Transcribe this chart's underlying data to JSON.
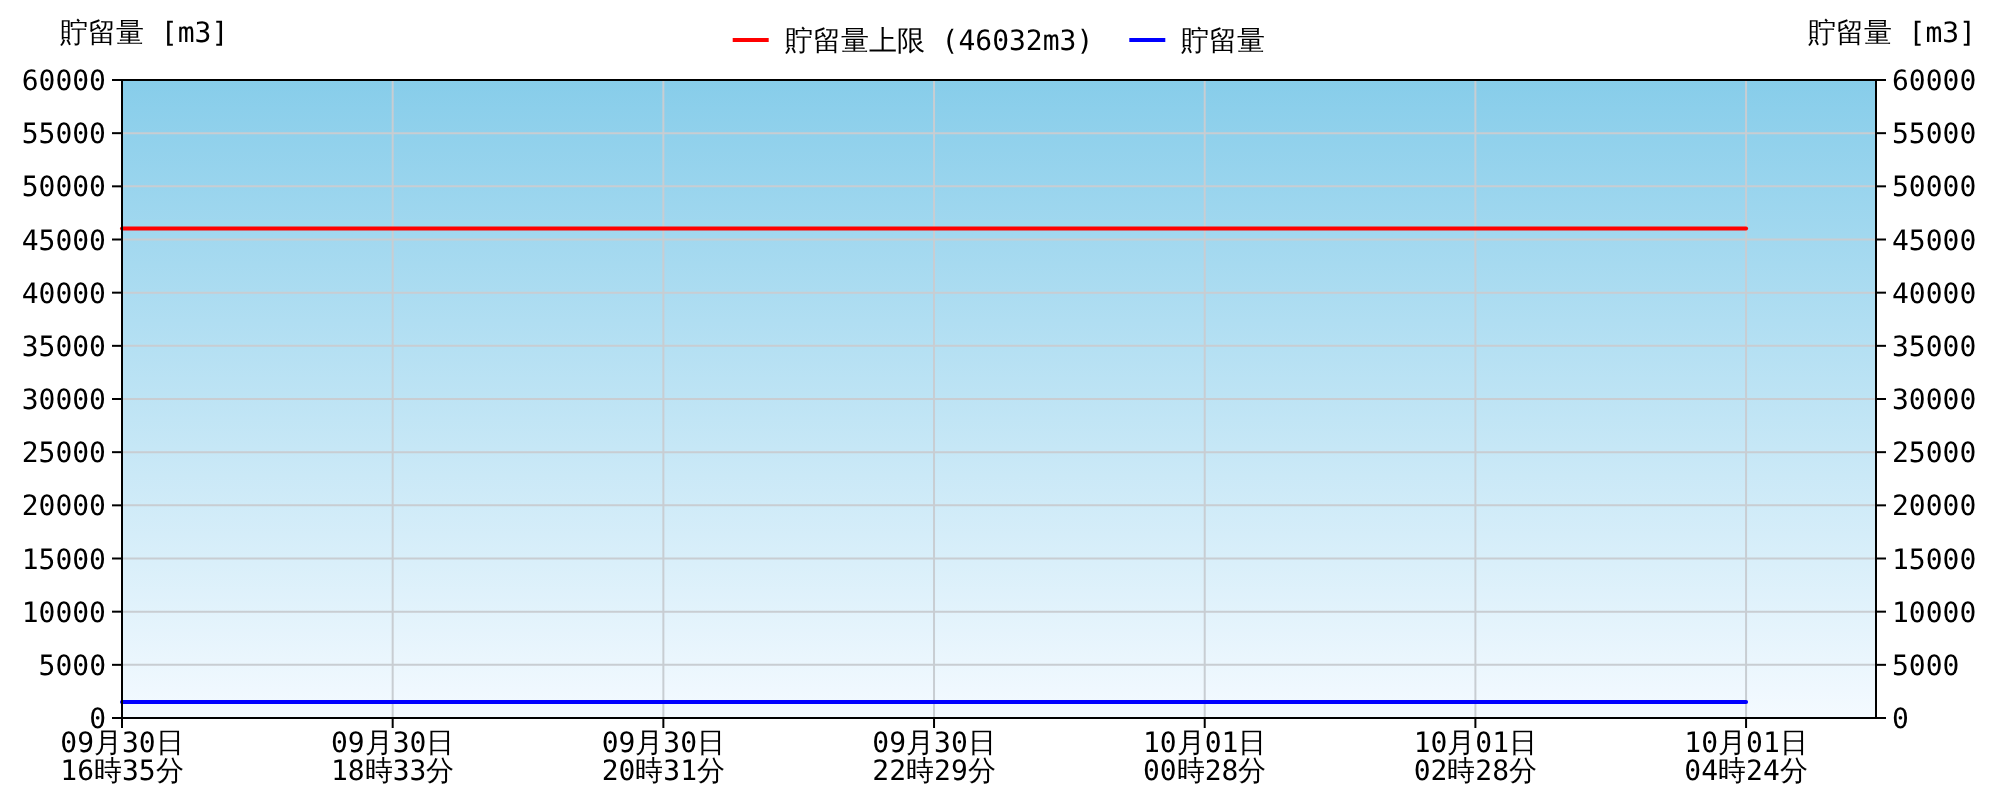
{
  "chart_data": {
    "type": "line",
    "ylabel": "貯留量 [m3]",
    "y2label": "貯留量 [m3]",
    "categories": [
      "09月30日\n16時35分",
      "09月30日\n18時33分",
      "09月30日\n20時31分",
      "09月30日\n22時29分",
      "10月01日\n00時28分",
      "10月01日\n02時28分",
      "10月01日\n04時24分"
    ],
    "series": [
      {
        "name": "貯留量上限 (46032m3)",
        "color": "#ff0000",
        "values": [
          46032,
          46032,
          46032,
          46032,
          46032,
          46032,
          46032
        ]
      },
      {
        "name": "貯留量",
        "color": "#0000ff",
        "values": [
          1500,
          1500,
          1500,
          1500,
          1500,
          1500,
          1500
        ]
      }
    ],
    "ylim": [
      0,
      60000
    ],
    "yticks": [
      0,
      5000,
      10000,
      15000,
      20000,
      25000,
      30000,
      35000,
      40000,
      45000,
      50000,
      55000,
      60000
    ],
    "y2lim": [
      0,
      60000
    ],
    "y2ticks": [
      0,
      5000,
      10000,
      15000,
      20000,
      25000,
      30000,
      35000,
      40000,
      45000,
      50000,
      55000,
      60000
    ],
    "grid": true,
    "legend": "top",
    "marker": "none",
    "line_style": "solid"
  }
}
